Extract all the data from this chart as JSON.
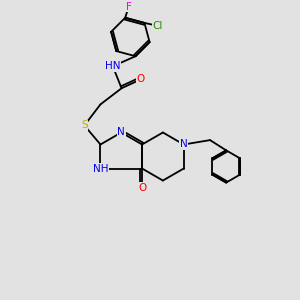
{
  "background_color": "#e2e2e2",
  "bond_color": "#000000",
  "atom_colors": {
    "N": "#0000ee",
    "O": "#ff0000",
    "S": "#bbaa00",
    "Cl": "#228800",
    "F": "#ee00ee",
    "C": "#000000",
    "H": "#555555"
  },
  "font_size": 7.5,
  "bond_width": 1.3,
  "figsize": [
    3.0,
    3.0
  ],
  "dpi": 100,
  "xlim": [
    0,
    10
  ],
  "ylim": [
    0,
    10
  ]
}
